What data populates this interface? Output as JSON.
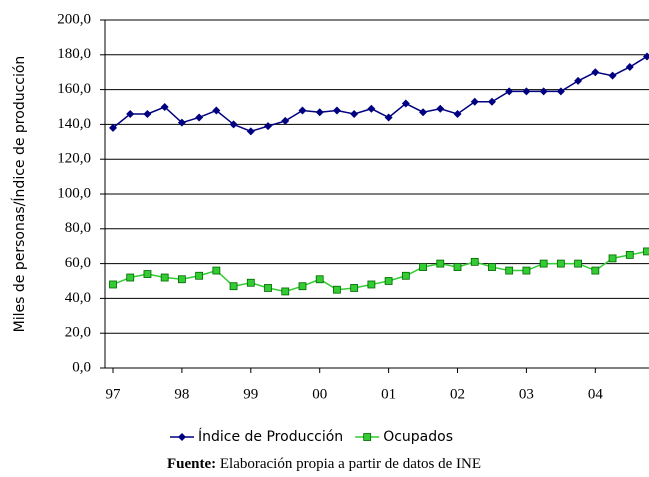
{
  "chart_data": {
    "type": "line",
    "y_label": "Miles de personas/Índice de producción",
    "categories": [
      "97",
      null,
      null,
      null,
      "98",
      null,
      null,
      null,
      "99",
      null,
      null,
      null,
      "00",
      null,
      null,
      null,
      "01",
      null,
      null,
      null,
      "02",
      null,
      null,
      null,
      "03",
      null,
      null,
      null,
      "04",
      null,
      null,
      null
    ],
    "series": [
      {
        "name": "Índice de Producción",
        "color": "#000080",
        "marker": "diamond",
        "values": [
          138,
          146,
          146,
          150,
          141,
          144,
          148,
          140,
          136,
          139,
          142,
          148,
          147,
          148,
          146,
          149,
          144,
          152,
          147,
          149,
          146,
          153,
          153,
          159,
          159,
          159,
          159,
          165,
          170,
          168,
          173,
          179
        ]
      },
      {
        "name": "Ocupados",
        "color": "#33cc33",
        "marker": "square",
        "values": [
          48,
          52,
          54,
          52,
          51,
          53,
          56,
          47,
          49,
          46,
          44,
          47,
          51,
          45,
          46,
          48,
          50,
          53,
          58,
          60,
          58,
          61,
          58,
          56,
          56,
          60,
          60,
          60,
          56,
          63,
          65,
          67
        ]
      }
    ],
    "ylim": [
      0,
      200
    ],
    "yticks": [
      {
        "value": 0,
        "label": "0,0"
      },
      {
        "value": 20,
        "label": "20,0"
      },
      {
        "value": 40,
        "label": "40,0"
      },
      {
        "value": 60,
        "label": "60,0"
      },
      {
        "value": 80,
        "label": "80,0"
      },
      {
        "value": 100,
        "label": "100,0"
      },
      {
        "value": 120,
        "label": "120,0"
      },
      {
        "value": 140,
        "label": "140,0"
      },
      {
        "value": 160,
        "label": "160,0"
      },
      {
        "value": 180,
        "label": "180,0"
      },
      {
        "value": 200,
        "label": "200,0"
      }
    ],
    "grid": true,
    "legend": "bottom",
    "source_label": "Fuente:",
    "source": "Elaboración propia a partir de datos de INE"
  }
}
